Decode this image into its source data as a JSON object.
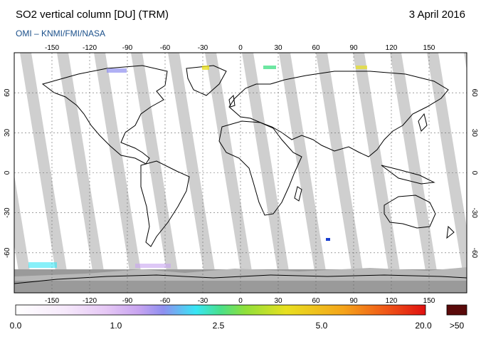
{
  "header": {
    "title": "SO2 vertical column [DU] (TRM)",
    "date": "3 April 2016",
    "credit": "OMI  –  KNMI/FMI/NASA"
  },
  "map": {
    "lon_ticks": [
      "-150",
      "-120",
      "-90",
      "-60",
      "-30",
      "0",
      "30",
      "60",
      "90",
      "120",
      "150"
    ],
    "lat_ticks": [
      "60",
      "30",
      "0",
      "-30",
      "-60"
    ],
    "lon_range": [
      -180,
      180
    ],
    "lat_range": [
      -90,
      90
    ],
    "projection": "equirectangular"
  },
  "colorbar": {
    "labels": [
      "0.0",
      "1.0",
      "2.5",
      "5.0",
      "20.0"
    ],
    "over_label": ">50",
    "colors": [
      "#ffffff",
      "#f6e9fb",
      "#e6c8f5",
      "#c8a4f0",
      "#8f8ff0",
      "#38e6f5",
      "#49e08a",
      "#8fe03a",
      "#e8e020",
      "#f5a41a",
      "#f05a18",
      "#e01010"
    ],
    "over_color": "#5a0a0a",
    "gap_color": "#cfcfcf",
    "polar_night_color": "#9a9a9a"
  }
}
